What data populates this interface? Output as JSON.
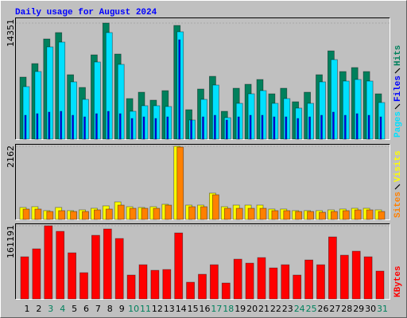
{
  "chart_data": [
    {
      "type": "bar",
      "title": "Daily usage for August 2024",
      "ylim": [
        0,
        14351
      ],
      "yticks": [
        14351
      ],
      "series": [
        {
          "name": "Hits",
          "color": "#00805c",
          "values": [
            7667,
            9338,
            12385,
            13172,
            7962,
            6389,
            10419,
            14351,
            10518,
            5013,
            5799,
            4817,
            5996,
            14056,
            3637,
            6193,
            7765,
            3440,
            6291,
            6782,
            7372,
            5603,
            6291,
            4620,
            5799,
            7962,
            10911,
            8355,
            8847,
            8355,
            5603
          ]
        },
        {
          "name": "Files",
          "color": "#0000ff",
          "values": [
            2949,
            3145,
            3342,
            3440,
            2949,
            2752,
            3145,
            3440,
            3145,
            2555,
            2752,
            2555,
            2752,
            12285,
            2359,
            2752,
            2949,
            2359,
            2752,
            2949,
            2949,
            2752,
            2752,
            2555,
            2752,
            2949,
            3342,
            2949,
            3145,
            2949,
            2752
          ]
        },
        {
          "name": "Pages",
          "color": "#00e0ff",
          "values": [
            6488,
            8356,
            11403,
            11993,
            7078,
            4915,
            9535,
            13172,
            9240,
            3441,
            4129,
            4129,
            4030,
            13271,
            2359,
            4915,
            6684,
            2654,
            4424,
            5603,
            5996,
            4424,
            5013,
            3834,
            4424,
            7078,
            9830,
            7176,
            7373,
            7176,
            4522
          ]
        }
      ]
    },
    {
      "type": "bar",
      "ylim": [
        0,
        2162
      ],
      "yticks": [
        2162
      ],
      "series": [
        {
          "name": "Visits",
          "color": "#ffff00",
          "values": [
            353,
            376,
            259,
            353,
            259,
            282,
            329,
            400,
            517,
            376,
            353,
            376,
            447,
            2162,
            423,
            423,
            776,
            376,
            423,
            423,
            423,
            306,
            306,
            259,
            259,
            259,
            282,
            306,
            329,
            329,
            282
          ]
        },
        {
          "name": "Sites",
          "color": "#ff8000",
          "values": [
            306,
            306,
            235,
            259,
            235,
            235,
            282,
            306,
            423,
            329,
            329,
            329,
            423,
            2138,
            376,
            376,
            729,
            329,
            329,
            329,
            329,
            259,
            259,
            235,
            235,
            212,
            235,
            259,
            282,
            282,
            235
          ]
        }
      ]
    },
    {
      "type": "bar",
      "ylim": [
        0,
        161191
      ],
      "yticks": [
        161191
      ],
      "categories": [
        "1",
        "2",
        "3",
        "4",
        "5",
        "6",
        "7",
        "8",
        "9",
        "10",
        "11",
        "12",
        "13",
        "14",
        "15",
        "16",
        "17",
        "18",
        "19",
        "20",
        "21",
        "22",
        "23",
        "24",
        "25",
        "26",
        "27",
        "28",
        "29",
        "30",
        "31"
      ],
      "category_colors": [
        "#000000",
        "#000000",
        "#00805c",
        "#00805c",
        "#000000",
        "#000000",
        "#000000",
        "#000000",
        "#000000",
        "#00805c",
        "#00805c",
        "#000000",
        "#000000",
        "#000000",
        "#000000",
        "#000000",
        "#00805c",
        "#00805c",
        "#000000",
        "#000000",
        "#000000",
        "#000000",
        "#000000",
        "#00805c",
        "#00805c",
        "#000000",
        "#000000",
        "#000000",
        "#000000",
        "#000000",
        "#00805c"
      ],
      "series": [
        {
          "name": "KBytes",
          "color": "#ff0000",
          "values": [
            92857,
            110378,
            161191,
            148927,
            101618,
            57818,
            140166,
            154181,
            133157,
            52562,
            75338,
            63074,
            64826,
            145421,
            36793,
            54314,
            75338,
            35041,
            87603,
            78843,
            91107,
            68330,
            75338,
            52562,
            85851,
            75338,
            136661,
            96364,
            105124,
            92857,
            61322
          ]
        }
      ]
    }
  ]
}
